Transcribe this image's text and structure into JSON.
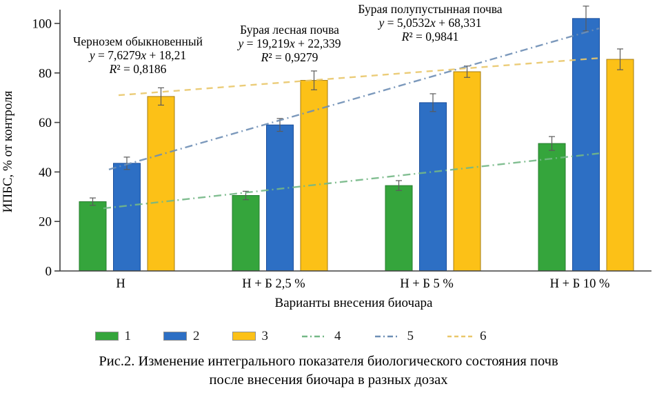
{
  "figure": {
    "caption_line1": "Рис.2. Изменение интегрального показателя биологического состояния почв",
    "caption_line2": "после внесения биочара в разных дозах"
  },
  "chart_data": {
    "type": "bar",
    "title": "",
    "xlabel": "Варианты внесения биочара",
    "ylabel": "ИПБС, % от контроля",
    "ylim": [
      0,
      100
    ],
    "yticks": [
      0,
      20,
      40,
      60,
      80,
      100
    ],
    "grid": "off",
    "legend_position": "bottom",
    "categories": [
      "Н",
      "Н + Б 2,5 %",
      "Н + Б 5 %",
      "Н + Б 10 %"
    ],
    "bar_series": [
      {
        "name": "1",
        "color": "#35a53c",
        "border": "#267d2e",
        "values": [
          28,
          30.5,
          34.5,
          51.5
        ],
        "errors": [
          1.5,
          1.7,
          2.0,
          2.8
        ]
      },
      {
        "name": "2",
        "color": "#2d6fc4",
        "border": "#1c4f9c",
        "values": [
          43.5,
          59,
          68,
          102
        ],
        "errors": [
          2.5,
          2.6,
          3.6,
          5.0
        ]
      },
      {
        "name": "3",
        "color": "#fcc117",
        "border": "#a57c12",
        "values": [
          70.5,
          77,
          80.5,
          85.5
        ],
        "errors": [
          3.5,
          3.8,
          2.3,
          4.2
        ]
      }
    ],
    "trend_lines": [
      {
        "name": "4",
        "color": "#74b886",
        "style": "dashdot",
        "slope": 7.6279,
        "intercept": 18.21,
        "start_value": 25.3,
        "end_value": 47.5
      },
      {
        "name": "5",
        "color": "#6e8fb5",
        "style": "dashdot",
        "slope": 19.219,
        "intercept": 22.339,
        "start_value": 41,
        "end_value": 98
      },
      {
        "name": "6",
        "color": "#e9c76a",
        "style": "dashed",
        "slope": 5.0532,
        "intercept": 68.331,
        "start_value": 71,
        "end_value": 86
      }
    ],
    "annotations": [
      {
        "title": "Чернозем обыкновенный",
        "equation": "y = 7,6279x + 18,21",
        "r2": "R² = 0,8186"
      },
      {
        "title": "Бурая лесная почва",
        "equation": "y = 19,219x + 22,339",
        "r2": "R² = 0,9279"
      },
      {
        "title": "Бурая полупустынная почва",
        "equation": "y = 5,0532x + 68,331",
        "r2": "R² = 0,9841"
      }
    ],
    "legend": [
      {
        "label": "1",
        "swatch": "box",
        "color": "#35a53c"
      },
      {
        "label": "2",
        "swatch": "box",
        "color": "#2d6fc4"
      },
      {
        "label": "3",
        "swatch": "box",
        "color": "#fcc117"
      },
      {
        "label": "4",
        "swatch": "dashdot-line",
        "color": "#74b886"
      },
      {
        "label": "5",
        "swatch": "dashdot-line",
        "color": "#6e8fb5"
      },
      {
        "label": "6",
        "swatch": "dashed-line",
        "color": "#e9c76a"
      }
    ]
  }
}
